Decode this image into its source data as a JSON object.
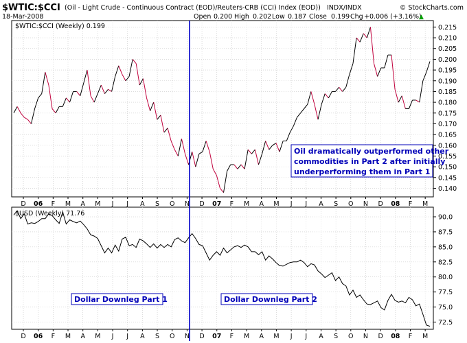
{
  "header": {
    "symbol": "$WTIC:$CCI",
    "description": "(Oil - Light Crude - Continuous Contract (EOD)/Reuters-CRB (CCI) Index (EOD))",
    "exchange": "INDX/INDX",
    "watermark": "© StockCharts.com",
    "date": "18-Mar-2008",
    "open_label": "Open",
    "open": "0.200",
    "high_label": "High",
    "high": "0.202",
    "low_label": "Low",
    "low": "0.187",
    "close_label": "Close",
    "close": "0.199",
    "chg_label": "Chg",
    "chg": "+0.006 (+3.16%)",
    "chg_arrow": "▲"
  },
  "colors": {
    "up": "#000000",
    "down": "#c0003c",
    "divider": "#0000c8",
    "annotation": "#0000b8",
    "grid": "#bbbbbb",
    "usd_line": "#000000"
  },
  "chart_data": [
    {
      "type": "line",
      "legend": "$WTIC:$CCI (Weekly) 0.199",
      "up_down_coloring": true,
      "ylim": [
        0.136,
        0.218
      ],
      "y_ticks": [
        "0.215",
        "0.210",
        "0.205",
        "0.200",
        "0.195",
        "0.190",
        "0.185",
        "0.180",
        "0.175",
        "0.170",
        "0.165",
        "0.160",
        "0.155",
        "0.150",
        "0.145",
        "0.140"
      ],
      "annotation": [
        "Oil dramatically outperformed other",
        "commodities in Part 2 after initially",
        "underperforming them in Part 1"
      ],
      "values": [
        0.175,
        0.178,
        0.175,
        0.173,
        0.172,
        0.17,
        0.177,
        0.182,
        0.184,
        0.194,
        0.188,
        0.177,
        0.175,
        0.178,
        0.178,
        0.182,
        0.18,
        0.185,
        0.185,
        0.183,
        0.189,
        0.195,
        0.183,
        0.18,
        0.184,
        0.188,
        0.184,
        0.186,
        0.185,
        0.192,
        0.197,
        0.193,
        0.19,
        0.192,
        0.2,
        0.198,
        0.188,
        0.191,
        0.182,
        0.176,
        0.18,
        0.172,
        0.174,
        0.166,
        0.168,
        0.162,
        0.158,
        0.155,
        0.163,
        0.156,
        0.151,
        0.157,
        0.15,
        0.156,
        0.157,
        0.162,
        0.157,
        0.149,
        0.146,
        0.14,
        0.138,
        0.148,
        0.151,
        0.151,
        0.149,
        0.151,
        0.149,
        0.158,
        0.156,
        0.158,
        0.151,
        0.156,
        0.162,
        0.158,
        0.16,
        0.161,
        0.157,
        0.162,
        0.162,
        0.166,
        0.169,
        0.173,
        0.175,
        0.177,
        0.179,
        0.185,
        0.179,
        0.172,
        0.179,
        0.184,
        0.182,
        0.185,
        0.185,
        0.187,
        0.185,
        0.187,
        0.193,
        0.198,
        0.21,
        0.208,
        0.212,
        0.21,
        0.215,
        0.198,
        0.192,
        0.196,
        0.196,
        0.202,
        0.202,
        0.186,
        0.18,
        0.183,
        0.177,
        0.177,
        0.181,
        0.181,
        0.18,
        0.19,
        0.194,
        0.199
      ]
    },
    {
      "type": "line",
      "legend": "$USD (Weekly) 71.76",
      "ylim": [
        71.3,
        91.6
      ],
      "y_ticks": [
        "90.0",
        "87.5",
        "85.0",
        "82.5",
        "80.0",
        "77.5",
        "75.0",
        "72.5"
      ],
      "annotations": [
        "Dollar Downleg Part 1",
        "Dollar Downleg Part 2"
      ],
      "values": [
        90.3,
        91.0,
        89.7,
        90.5,
        88.8,
        89.0,
        88.9,
        89.2,
        89.7,
        89.7,
        90.5,
        90.2,
        89.5,
        88.9,
        90.8,
        88.8,
        89.5,
        89.2,
        89.0,
        89.3,
        88.7,
        88.0,
        87.0,
        86.8,
        86.4,
        85.2,
        84.0,
        84.8,
        84.0,
        85.3,
        84.3,
        86.3,
        86.6,
        85.2,
        85.4,
        84.9,
        86.3,
        86.0,
        85.5,
        84.9,
        85.5,
        84.8,
        85.4,
        84.9,
        85.4,
        85.0,
        86.2,
        86.5,
        86.0,
        85.7,
        86.5,
        87.2,
        86.4,
        85.4,
        85.2,
        84.0,
        82.8,
        83.6,
        84.2,
        83.6,
        84.8,
        84.0,
        84.5,
        85.0,
        85.2,
        84.9,
        85.3,
        85.0,
        84.2,
        84.2,
        83.7,
        84.2,
        82.8,
        83.5,
        83.0,
        82.4,
        81.9,
        81.8,
        82.1,
        82.4,
        82.5,
        82.5,
        82.8,
        82.4,
        81.7,
        82.2,
        82.0,
        81.0,
        80.5,
        79.9,
        80.3,
        80.7,
        79.4,
        80.0,
        78.9,
        78.5,
        77.0,
        77.8,
        76.6,
        77.0,
        76.2,
        75.5,
        75.4,
        75.7,
        76.0,
        74.9,
        74.5,
        76.1,
        77.1,
        76.1,
        75.8,
        76.0,
        75.7,
        76.6,
        76.2,
        75.2,
        75.5,
        73.8,
        72.0,
        71.8
      ]
    }
  ],
  "x_axis": {
    "month_labels": [
      "D",
      "06",
      "F",
      "M",
      "A",
      "M",
      "J",
      "J",
      "A",
      "S",
      "O",
      "N",
      "D",
      "07",
      "F",
      "M",
      "A",
      "M",
      "J",
      "J",
      "A",
      "S",
      "O",
      "N",
      "D",
      "08",
      "F",
      "M"
    ]
  }
}
